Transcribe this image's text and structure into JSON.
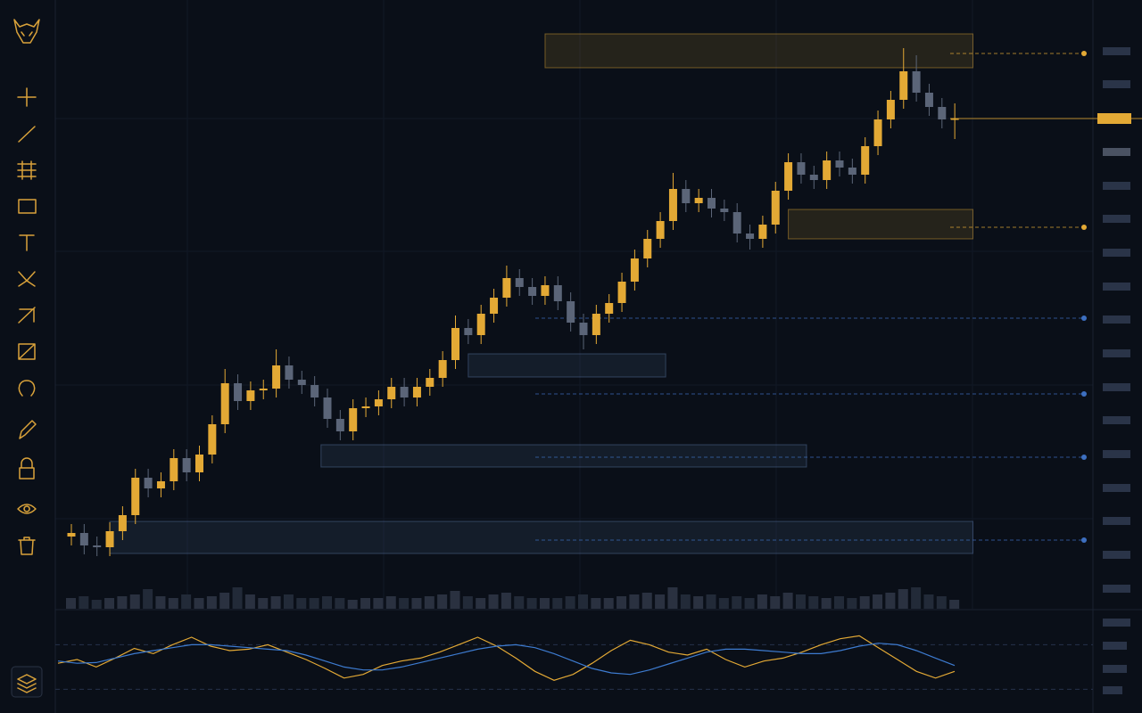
{
  "chart_data": {
    "type": "candlestick",
    "ylim": [
      0,
      640
    ],
    "bull_color": "#e3a935",
    "bear_color": "#5b6578",
    "open": [
      38,
      42,
      28,
      26,
      44,
      62,
      104,
      92,
      100,
      126,
      110,
      130,
      164,
      210,
      190,
      202,
      204,
      230,
      214,
      208,
      194,
      170,
      156,
      182,
      184,
      192,
      206,
      194,
      206,
      216,
      236,
      272,
      264,
      288,
      306,
      328,
      318,
      308,
      320,
      302,
      278,
      264,
      288,
      300,
      324,
      350,
      372,
      392,
      428,
      412,
      418,
      406,
      402,
      378,
      372,
      388,
      426,
      458,
      444,
      438,
      460,
      452,
      444,
      476,
      506,
      528,
      560,
      536,
      520,
      506
    ],
    "close": [
      42,
      28,
      26,
      44,
      62,
      104,
      92,
      100,
      126,
      110,
      130,
      164,
      210,
      190,
      202,
      204,
      230,
      214,
      208,
      194,
      170,
      156,
      182,
      184,
      192,
      206,
      194,
      206,
      216,
      236,
      272,
      264,
      288,
      306,
      328,
      318,
      308,
      320,
      302,
      278,
      264,
      288,
      300,
      324,
      350,
      372,
      392,
      428,
      412,
      418,
      406,
      402,
      378,
      372,
      388,
      426,
      458,
      444,
      438,
      460,
      452,
      444,
      476,
      506,
      528,
      560,
      536,
      520,
      506,
      507
    ],
    "high": [
      52,
      52,
      38,
      54,
      72,
      114,
      114,
      110,
      136,
      136,
      140,
      174,
      226,
      220,
      212,
      214,
      248,
      240,
      224,
      218,
      204,
      180,
      192,
      194,
      202,
      216,
      216,
      216,
      226,
      246,
      286,
      282,
      298,
      316,
      342,
      338,
      328,
      330,
      330,
      312,
      288,
      298,
      310,
      334,
      360,
      382,
      402,
      446,
      438,
      428,
      428,
      416,
      412,
      388,
      398,
      436,
      468,
      468,
      454,
      470,
      470,
      462,
      486,
      516,
      538,
      586,
      578,
      546,
      530,
      524
    ],
    "low": [
      28,
      18,
      16,
      16,
      34,
      52,
      82,
      82,
      90,
      100,
      100,
      120,
      154,
      180,
      180,
      192,
      194,
      204,
      198,
      184,
      160,
      146,
      146,
      172,
      174,
      182,
      184,
      184,
      196,
      206,
      226,
      254,
      254,
      278,
      296,
      308,
      298,
      298,
      292,
      268,
      248,
      254,
      278,
      290,
      314,
      340,
      362,
      382,
      402,
      402,
      396,
      392,
      368,
      360,
      362,
      378,
      416,
      434,
      428,
      428,
      442,
      434,
      434,
      466,
      496,
      518,
      526,
      510,
      496,
      484
    ],
    "volume": [
      12,
      14,
      10,
      12,
      14,
      16,
      22,
      14,
      12,
      16,
      12,
      14,
      18,
      24,
      16,
      12,
      14,
      16,
      12,
      12,
      14,
      12,
      10,
      12,
      12,
      14,
      12,
      12,
      14,
      16,
      20,
      14,
      12,
      16,
      18,
      14,
      12,
      12,
      12,
      14,
      16,
      12,
      12,
      14,
      16,
      18,
      16,
      24,
      16,
      14,
      16,
      12,
      14,
      12,
      16,
      14,
      18,
      16,
      14,
      12,
      14,
      12,
      14,
      16,
      18,
      22,
      24,
      16,
      14,
      10
    ],
    "levels": [
      580,
      385,
      283,
      198,
      127,
      34
    ],
    "zones": [
      {
        "top": 602,
        "bottom": 564,
        "from": 37,
        "to": 70,
        "color": "#e3a935"
      },
      {
        "top": 405,
        "bottom": 372,
        "from": 56,
        "to": 70,
        "color": "#e3a935"
      },
      {
        "top": 243,
        "bottom": 217,
        "from": 31,
        "to": 46,
        "color": "#5b7aa8"
      },
      {
        "top": 141,
        "bottom": 116,
        "from": 19.5,
        "to": 57,
        "color": "#5b7aa8"
      },
      {
        "top": 55,
        "bottom": 19,
        "from": 3,
        "to": 70,
        "color": "#5b7aa8"
      }
    ],
    "oscillator": {
      "ylim": [
        0,
        100
      ],
      "levels": [
        80,
        20
      ],
      "series": [
        {
          "color": "#e3a935",
          "values": [
            55,
            60,
            50,
            62,
            75,
            68,
            80,
            90,
            78,
            72,
            74,
            80,
            70,
            60,
            48,
            35,
            40,
            52,
            58,
            62,
            70,
            80,
            90,
            78,
            62,
            44,
            32,
            40,
            55,
            72,
            86,
            80,
            70,
            66,
            74,
            60,
            50,
            58,
            62,
            70,
            80,
            88,
            92,
            76,
            60,
            44,
            35,
            44
          ]
        },
        {
          "color": "#3d7bd0",
          "values": [
            58,
            55,
            56,
            62,
            68,
            72,
            76,
            80,
            80,
            78,
            76,
            74,
            72,
            66,
            58,
            50,
            46,
            46,
            50,
            56,
            62,
            68,
            74,
            78,
            80,
            76,
            68,
            58,
            48,
            42,
            40,
            46,
            54,
            62,
            70,
            74,
            74,
            72,
            70,
            68,
            68,
            72,
            78,
            82,
            80,
            72,
            62,
            52
          ]
        }
      ]
    }
  }
}
